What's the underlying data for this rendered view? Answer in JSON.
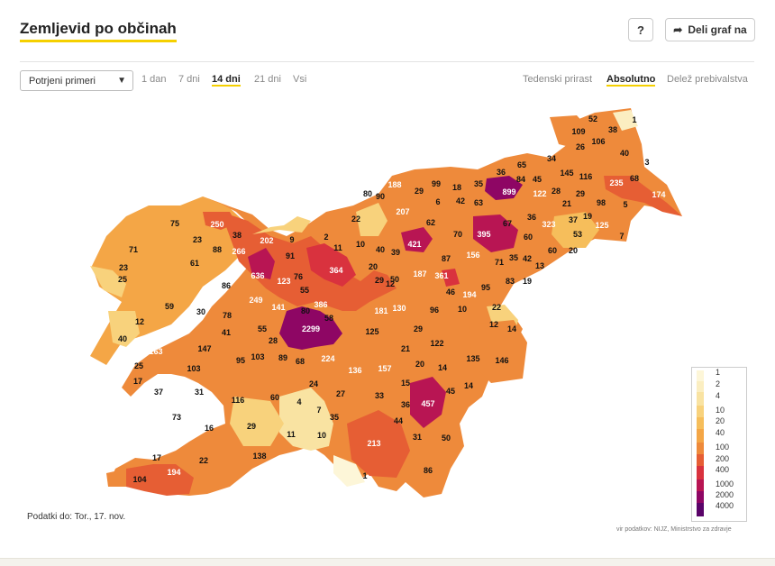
{
  "title": "Zemljevid po občinah",
  "help_label": "?",
  "share_label": "Deli graf na",
  "select_value": "Potrjeni primeri",
  "ranges": [
    "1 dan",
    "7 dni",
    "14 dni",
    "21 dni",
    "Vsi"
  ],
  "active_range": "14 dni",
  "modes": [
    "Tedenski prirast",
    "Absolutno",
    "Delež prebivalstva"
  ],
  "active_mode": "Absolutno",
  "updated": "Podatki do: Tor., 17. nov.",
  "source": "vir podatkov: NIJZ, Ministrstvo za zdravje",
  "legend": [
    {
      "label": "1",
      "color": "#fdf6d8"
    },
    {
      "label": "2",
      "color": "#fbeec1"
    },
    {
      "label": "4",
      "color": "#f9e3a2"
    },
    {
      "label": "10",
      "color": "#f8d27c"
    },
    {
      "label": "20",
      "color": "#f6be5b"
    },
    {
      "label": "40",
      "color": "#f4a646"
    },
    {
      "label": "100",
      "color": "#ee8a3b"
    },
    {
      "label": "200",
      "color": "#e65e34"
    },
    {
      "label": "400",
      "color": "#d9323e"
    },
    {
      "label": "1000",
      "color": "#b81553"
    },
    {
      "label": "2000",
      "color": "#8e0664"
    },
    {
      "label": "4000",
      "color": "#5a0469"
    }
  ],
  "map_values": [
    "52",
    "1",
    "109",
    "38",
    "26",
    "106",
    "40",
    "3",
    "34",
    "65",
    "145",
    "116",
    "235",
    "68",
    "174",
    "36",
    "84",
    "45",
    "28",
    "29",
    "98",
    "5",
    "35",
    "899",
    "122",
    "21",
    "19",
    "125",
    "188",
    "99",
    "18",
    "80",
    "90",
    "29",
    "6",
    "42",
    "63",
    "207",
    "67",
    "36",
    "323",
    "37",
    "53",
    "7",
    "22",
    "421",
    "70",
    "395",
    "60",
    "60",
    "20",
    "250",
    "75",
    "62",
    "23",
    "2",
    "10",
    "11",
    "40",
    "39",
    "87",
    "156",
    "71",
    "35",
    "42",
    "13",
    "38",
    "202",
    "9",
    "61",
    "266",
    "88",
    "23",
    "91",
    "364",
    "20",
    "187",
    "361",
    "83",
    "19",
    "71",
    "636",
    "50",
    "25",
    "86",
    "123",
    "29",
    "12",
    "46",
    "194",
    "95",
    "249",
    "76",
    "55",
    "386",
    "181",
    "130",
    "96",
    "10",
    "59",
    "30",
    "141",
    "22",
    "78",
    "80",
    "58",
    "2299",
    "12",
    "14",
    "55",
    "125",
    "29",
    "12",
    "41",
    "40",
    "163",
    "147",
    "28",
    "224",
    "122",
    "21",
    "135",
    "146",
    "25",
    "103",
    "95",
    "103",
    "89",
    "68",
    "136",
    "157",
    "20",
    "14",
    "17",
    "37",
    "31",
    "116",
    "60",
    "24",
    "27",
    "33",
    "15",
    "45",
    "14",
    "457",
    "73",
    "4",
    "7",
    "35",
    "36",
    "44",
    "16",
    "29",
    "11",
    "10",
    "31",
    "50",
    "213",
    "138",
    "22",
    "17",
    "194",
    "104",
    "1",
    "86"
  ],
  "chart_data": {
    "type": "map",
    "title": "Zemljevid po občinah",
    "metric": "Potrjeni primeri",
    "period": "14 dni",
    "mode": "Absolutno",
    "legend_breaks": [
      1,
      2,
      4,
      10,
      20,
      40,
      100,
      200,
      400,
      1000,
      2000,
      4000
    ],
    "region_values": [
      52,
      1,
      109,
      38,
      26,
      106,
      40,
      3,
      34,
      65,
      145,
      116,
      235,
      68,
      174,
      36,
      84,
      45,
      28,
      29,
      98,
      5,
      35,
      899,
      122,
      21,
      19,
      125,
      188,
      99,
      18,
      80,
      90,
      29,
      6,
      42,
      63,
      207,
      67,
      36,
      323,
      37,
      53,
      7,
      22,
      421,
      70,
      395,
      60,
      60,
      20,
      250,
      75,
      62,
      23,
      2,
      10,
      11,
      40,
      39,
      87,
      156,
      71,
      35,
      42,
      13,
      38,
      202,
      9,
      61,
      266,
      88,
      23,
      91,
      364,
      20,
      187,
      361,
      83,
      19,
      71,
      636,
      50,
      25,
      86,
      123,
      29,
      12,
      46,
      194,
      95,
      249,
      76,
      55,
      386,
      181,
      130,
      96,
      10,
      59,
      30,
      141,
      22,
      78,
      80,
      58,
      2299,
      12,
      14,
      55,
      125,
      29,
      12,
      41,
      40,
      163,
      147,
      28,
      224,
      122,
      21,
      135,
      146,
      25,
      103,
      95,
      103,
      89,
      68,
      136,
      157,
      20,
      14,
      17,
      37,
      31,
      116,
      60,
      24,
      27,
      33,
      15,
      45,
      14,
      457,
      73,
      4,
      7,
      35,
      36,
      44,
      16,
      29,
      11,
      10,
      31,
      50,
      213,
      138,
      22,
      17,
      194,
      104,
      1,
      86
    ]
  }
}
